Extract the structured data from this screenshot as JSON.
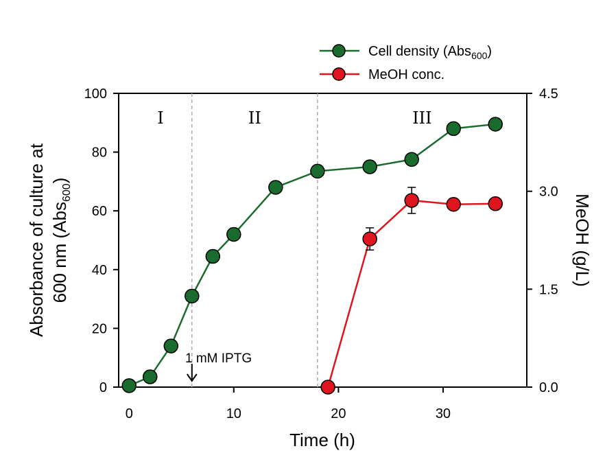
{
  "chart_data": {
    "type": "line",
    "x_axis": {
      "label": "Time (h)",
      "range": [
        -1,
        38
      ],
      "ticks": [
        0,
        10,
        20,
        30
      ]
    },
    "y_left": {
      "label_line1": "Absorbance of culture at",
      "label_line2_main": "600 nm (Abs",
      "label_line2_sub": "600",
      "label_line2_end": ")",
      "range": [
        0,
        100
      ],
      "ticks": [
        0,
        20,
        40,
        60,
        80,
        100
      ]
    },
    "y_right": {
      "label": "MeOH (g/L)",
      "range": [
        0,
        4.5
      ],
      "ticks": [
        "0.0",
        "1.5",
        "3.0",
        "4.5"
      ]
    },
    "series": [
      {
        "name_main": "Cell density (Abs",
        "name_sub": "600",
        "name_end": ")",
        "axis": "left",
        "color": "#1a6b2e",
        "x": [
          0,
          2,
          4,
          6,
          8,
          10,
          14,
          18,
          23,
          27,
          31,
          35
        ],
        "y": [
          0.5,
          3.5,
          14,
          31,
          44.5,
          52,
          68,
          73.5,
          75,
          77.5,
          88,
          89.5
        ]
      },
      {
        "name_main": "MeOH conc.",
        "axis": "right",
        "color": "#e0141f",
        "x": [
          19,
          23,
          27,
          31,
          35
        ],
        "y": [
          0,
          2.27,
          2.86,
          2.8,
          2.81
        ],
        "error": [
          0,
          0.17,
          0.2,
          0.08,
          0
        ]
      }
    ],
    "phase_boundaries": [
      6,
      18
    ],
    "phases": [
      {
        "label": "I",
        "x": 3
      },
      {
        "label": "II",
        "x": 12
      },
      {
        "label": "III",
        "x": 28
      }
    ],
    "annotation": {
      "text": "1 mM IPTG",
      "x": 6
    },
    "legend_position": "top-right",
    "grid": false
  }
}
